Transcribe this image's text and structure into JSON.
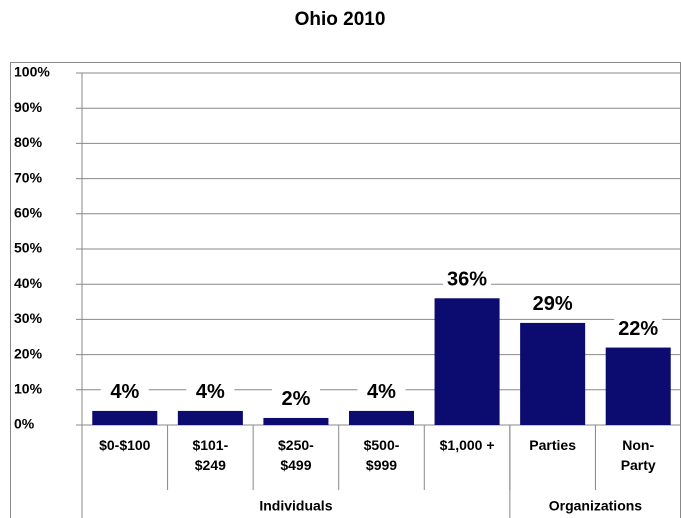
{
  "chart_data": {
    "type": "bar",
    "title": "Ohio 2010",
    "categories": [
      "$0-$100",
      "$101-\n$249",
      "$250-\n$499",
      "$500-\n$999",
      "$1,000 +",
      "Parties",
      "Non-\nParty"
    ],
    "values": [
      4,
      4,
      2,
      4,
      36,
      29,
      22
    ],
    "value_labels": [
      "4%",
      "4%",
      "2%",
      "4%",
      "36%",
      "29%",
      "22%"
    ],
    "groups": [
      {
        "name": "Individuals",
        "count": 5
      },
      {
        "name": "Organizations",
        "count": 2
      }
    ],
    "color": "#0b0b70",
    "ylim": [
      0,
      100
    ],
    "yticks": [
      {
        "value": 0,
        "label": "0%"
      },
      {
        "value": 10,
        "label": "10%"
      },
      {
        "value": 20,
        "label": "20%"
      },
      {
        "value": 30,
        "label": "30%"
      },
      {
        "value": 40,
        "label": "40%"
      },
      {
        "value": 50,
        "label": "50%"
      },
      {
        "value": 60,
        "label": "60%"
      },
      {
        "value": 70,
        "label": "70%"
      },
      {
        "value": 80,
        "label": "80%"
      },
      {
        "value": 90,
        "label": "90%"
      },
      {
        "value": 100,
        "label": "100%"
      }
    ],
    "grid": true
  }
}
